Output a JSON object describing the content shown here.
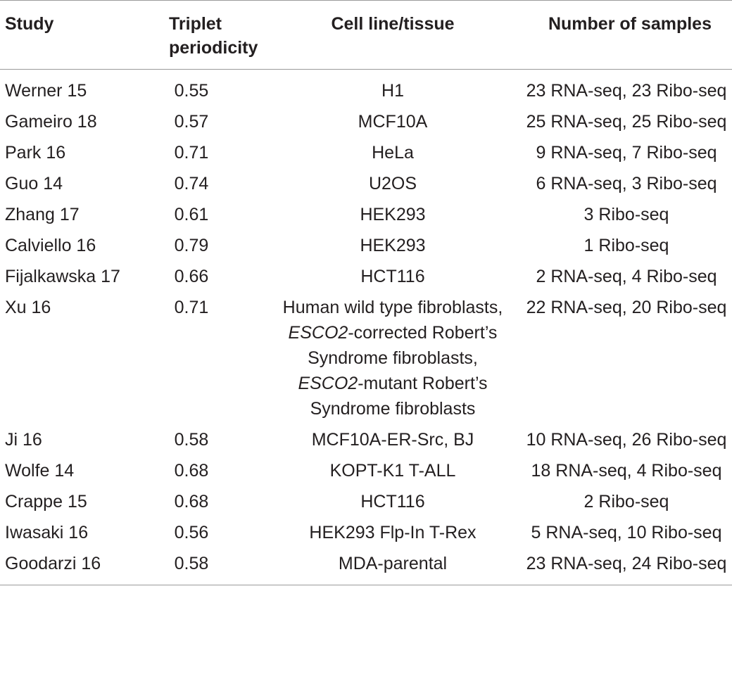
{
  "table": {
    "headers": {
      "study": "Study",
      "triplet_line1": "Triplet",
      "triplet_line2": "periodicity",
      "cell": "Cell line/tissue",
      "samples": "Number of samples"
    },
    "rows": [
      {
        "study": "Werner 15",
        "triplet": "0.55",
        "cell": "H1",
        "samples": "23 RNA-seq, 23 Ribo-seq"
      },
      {
        "study": "Gameiro 18",
        "triplet": "0.57",
        "cell": "MCF10A",
        "samples": "25 RNA-seq, 25 Ribo-seq"
      },
      {
        "study": "Park 16",
        "triplet": "0.71",
        "cell": "HeLa",
        "samples": "9 RNA-seq, 7 Ribo-seq"
      },
      {
        "study": "Guo 14",
        "triplet": "0.74",
        "cell": "U2OS",
        "samples": "6 RNA-seq, 3 Ribo-seq"
      },
      {
        "study": "Zhang 17",
        "triplet": "0.61",
        "cell": "HEK293",
        "samples": "3 Ribo-seq"
      },
      {
        "study": "Calviello 16",
        "triplet": "0.79",
        "cell": "HEK293",
        "samples": "1 Ribo-seq"
      },
      {
        "study": "Fijalkawska 17",
        "triplet": "0.66",
        "cell": "HCT116",
        "samples": "2 RNA-seq, 4 Ribo-seq"
      },
      {
        "study": "Xu 16",
        "triplet": "0.71",
        "cell_parts": {
          "line1": "Human wild type fibroblasts,",
          "gene_a": "ESCO2",
          "line2_rest": "-corrected Robert’s",
          "line3": "Syndrome fibroblasts,",
          "gene_b": "ESCO2",
          "line4_rest": "-mutant Robert’s",
          "line5": "Syndrome fibroblasts"
        },
        "samples": "22 RNA-seq, 20 Ribo-seq"
      },
      {
        "study": "Ji 16",
        "triplet": "0.58",
        "cell": "MCF10A-ER-Src, BJ",
        "samples": "10 RNA-seq, 26 Ribo-seq"
      },
      {
        "study": "Wolfe 14",
        "triplet": "0.68",
        "cell": "KOPT-K1 T-ALL",
        "samples": "18 RNA-seq, 4 Ribo-seq"
      },
      {
        "study": "Crappe 15",
        "triplet": "0.68",
        "cell": "HCT116",
        "samples": "2 Ribo-seq"
      },
      {
        "study": "Iwasaki 16",
        "triplet": "0.56",
        "cell": "HEK293 Flp-In T-Rex",
        "samples": "5 RNA-seq, 10 Ribo-seq"
      },
      {
        "study": "Goodarzi 16",
        "triplet": "0.58",
        "cell": "MDA-parental",
        "samples": "23 RNA-seq, 24 Ribo-seq"
      }
    ]
  }
}
